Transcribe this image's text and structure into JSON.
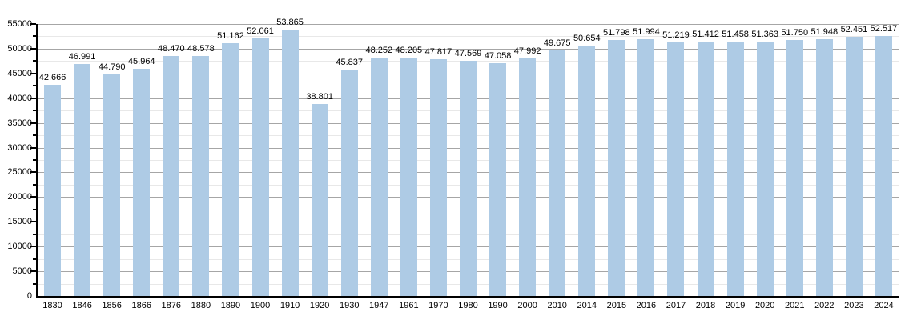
{
  "chart_data": {
    "type": "bar",
    "title": "",
    "xlabel": "",
    "ylabel": "",
    "categories": [
      "1830",
      "1846",
      "1856",
      "1866",
      "1876",
      "1880",
      "1890",
      "1900",
      "1910",
      "1920",
      "1930",
      "1947",
      "1961",
      "1970",
      "1980",
      "1990",
      "2000",
      "2010",
      "2014",
      "2015",
      "2016",
      "2017",
      "2018",
      "2019",
      "2020",
      "2021",
      "2022",
      "2023",
      "2024"
    ],
    "values": [
      42666,
      46991,
      44790,
      45964,
      48470,
      48578,
      51162,
      52061,
      53865,
      38801,
      45837,
      48252,
      48205,
      47817,
      47569,
      47058,
      47992,
      49675,
      50654,
      51798,
      51994,
      51219,
      51412,
      51458,
      51363,
      51750,
      51948,
      52451,
      52517
    ],
    "value_labels": [
      "42.666",
      "46.991",
      "44.790",
      "45.964",
      "48.470",
      "48.578",
      "51.162",
      "52.061",
      "53.865",
      "38.801",
      "45.837",
      "48.252",
      "48.205",
      "47.817",
      "47.569",
      "47.058",
      "47.992",
      "49.675",
      "50.654",
      "51.798",
      "51.994",
      "51.219",
      "51.412",
      "51.458",
      "51.363",
      "51.750",
      "51.948",
      "52.451",
      "52.517"
    ],
    "ylim": [
      0,
      55000
    ],
    "ytick_step": 5000,
    "ytick_labels": [
      "0",
      "5000",
      "10000",
      "15000",
      "20000",
      "25000",
      "30000",
      "35000",
      "40000",
      "45000",
      "50000",
      "55000"
    ],
    "grid_minor_step": 2500,
    "grid": true,
    "legend": false,
    "bar_color": "#aecbe5",
    "grid_major_color": "#a6a6a6",
    "grid_minor_color": "#e8e8e8",
    "axis_color": "#000000",
    "label_color": "#000000"
  }
}
